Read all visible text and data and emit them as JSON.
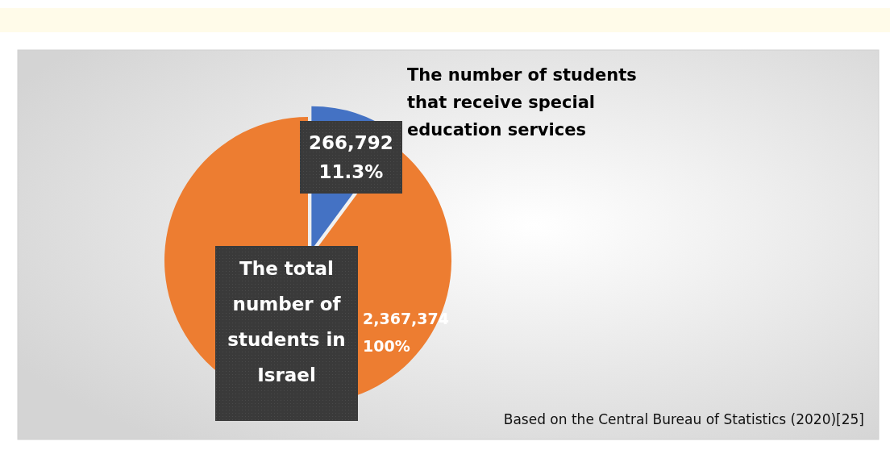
{
  "chart_data": {
    "type": "pie",
    "categories": [
      "The number of students that receive special education services",
      "The total number of students in Israel"
    ],
    "values": [
      266792,
      2367374
    ],
    "colors": [
      "#4472c4",
      "#ed7d31"
    ],
    "value_labels": [
      "266,792 11.3%",
      "2,367,374 100%"
    ],
    "annotations": [
      "Based on the Central Bureau of Statistics (2020)[25]"
    ]
  }
}
